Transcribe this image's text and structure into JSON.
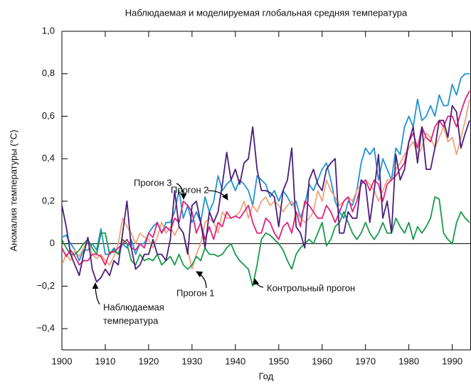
{
  "chart_data": {
    "type": "line",
    "title": "Наблюдаемая и моделируемая глобальная средняя температура",
    "xlabel": "Год",
    "ylabel": "Аномалия температуры (°C)",
    "x": [
      1900,
      1901,
      1902,
      1903,
      1904,
      1905,
      1906,
      1907,
      1908,
      1909,
      1910,
      1911,
      1912,
      1913,
      1914,
      1915,
      1916,
      1917,
      1918,
      1919,
      1920,
      1921,
      1922,
      1923,
      1924,
      1925,
      1926,
      1927,
      1928,
      1929,
      1930,
      1931,
      1932,
      1933,
      1934,
      1935,
      1936,
      1937,
      1938,
      1939,
      1940,
      1941,
      1942,
      1943,
      1944,
      1945,
      1946,
      1947,
      1948,
      1949,
      1950,
      1951,
      1952,
      1953,
      1954,
      1955,
      1956,
      1957,
      1958,
      1959,
      1960,
      1961,
      1962,
      1963,
      1964,
      1965,
      1966,
      1967,
      1968,
      1969,
      1970,
      1971,
      1972,
      1973,
      1974,
      1975,
      1976,
      1977,
      1978,
      1979,
      1980,
      1981,
      1982,
      1983,
      1984,
      1985,
      1986,
      1987,
      1988,
      1989,
      1990,
      1991,
      1992,
      1993,
      1994
    ],
    "series": [
      {
        "color": "#1f93d2",
        "values": [
          0.03,
          0.04,
          0,
          -0.03,
          -0.08,
          -0.03,
          -0.03,
          0,
          -0.03,
          0.07,
          -0.05,
          -0.05,
          -0.02,
          -0.05,
          0,
          -0.02,
          0.02,
          -0.05,
          0,
          0,
          0.05,
          0.08,
          0.1,
          0.05,
          0.1,
          0.1,
          0.15,
          0.25,
          0.12,
          0.18,
          0.1,
          0.15,
          0.1,
          0.22,
          0.15,
          0.2,
          0.32,
          0.25,
          0.28,
          0.3,
          0.25,
          0.3,
          0.28,
          0.25,
          0.18,
          0.32,
          0.3,
          0.28,
          0.22,
          0.25,
          0.2,
          0.25,
          0.22,
          0.18,
          0.2,
          0.12,
          0.18,
          0.28,
          0.25,
          0.3,
          0.35,
          0.38,
          0.3,
          0.2,
          0.15,
          0.12,
          0.2,
          0.18,
          0.25,
          0.38,
          0.45,
          0.42,
          0.45,
          0.3,
          0.4,
          0.35,
          0.3,
          0.45,
          0.42,
          0.55,
          0.6,
          0.55,
          0.68,
          0.58,
          0.6,
          0.65,
          0.6,
          0.7,
          0.65,
          0.65,
          0.75,
          0.7,
          0.78,
          0.8,
          0.8
        ]
      },
      {
        "color": "#f0a57a",
        "values": [
          -0.1,
          -0.05,
          -0.08,
          -0.03,
          -0.06,
          -0.02,
          0.02,
          -0.05,
          -0.07,
          -0.05,
          -0.08,
          -0.1,
          -0.06,
          0,
          0.12,
          0.08,
          0.05,
          0,
          0.05,
          0.03,
          0.02,
          -0.02,
          0.03,
          0.1,
          0.05,
          0.08,
          0.04,
          0.08,
          0.05,
          -0.03,
          -0.12,
          -0.05,
          0,
          0.1,
          0.12,
          0.1,
          0.05,
          0.15,
          0.12,
          0.12,
          0.13,
          0.15,
          0.2,
          0.12,
          0.18,
          0.15,
          0.2,
          0.22,
          0.18,
          0.2,
          0.18,
          0.15,
          0.18,
          0.2,
          0.15,
          0.12,
          0.1,
          0.12,
          0.15,
          0.25,
          0.2,
          0.3,
          0.25,
          0.22,
          0.18,
          0.2,
          0.22,
          0.2,
          0.25,
          0.28,
          0.3,
          0.28,
          0.25,
          0.2,
          0.25,
          0.3,
          0.3,
          0.35,
          0.38,
          0.42,
          0.45,
          0.48,
          0.42,
          0.45,
          0.52,
          0.5,
          0.45,
          0.5,
          0.55,
          0.48,
          0.5,
          0.42,
          0.5,
          0.58,
          0.68
        ]
      },
      {
        "color": "#1a9a4a",
        "values": [
          0.02,
          -0.02,
          -0.05,
          -0.05,
          -0.03,
          0,
          0.02,
          -0.02,
          -0.05,
          0.05,
          0.05,
          -0.05,
          -0.03,
          -0.05,
          0.02,
          0,
          -0.08,
          -0.1,
          -0.05,
          -0.08,
          -0.07,
          -0.08,
          -0.05,
          -0.1,
          -0.08,
          -0.06,
          -0.1,
          -0.05,
          -0.1,
          -0.12,
          -0.1,
          -0.06,
          -0.08,
          -0.02,
          -0.05,
          -0.05,
          -0.06,
          -0.05,
          -0.02,
          0,
          -0.05,
          -0.08,
          -0.1,
          -0.12,
          -0.2,
          -0.1,
          0.02,
          0.05,
          0.04,
          0.02,
          0,
          -0.03,
          -0.08,
          -0.12,
          -0.05,
          -0.02,
          0,
          0.02,
          0,
          0.05,
          0.1,
          -0.01,
          0.02,
          0.08,
          0.1,
          0.15,
          0.1,
          0.05,
          0.02,
          0.05,
          0.1,
          0.05,
          0.02,
          0.05,
          0.1,
          0.05,
          0.05,
          0.12,
          0.08,
          0.05,
          0.1,
          0.02,
          0.08,
          0.05,
          0.08,
          0.12,
          0.22,
          0.21,
          0.05,
          0.02,
          0,
          0.1,
          0.15,
          0.12,
          0.1
        ]
      },
      {
        "color": "#e0237c",
        "values": [
          -0.02,
          -0.06,
          -0.03,
          -0.06,
          -0.1,
          -0.08,
          -0.08,
          -0.05,
          -0.05,
          -0.06,
          -0.1,
          -0.04,
          -0.04,
          -0.02,
          0,
          0.02,
          -0.02,
          -0.03,
          0,
          -0.02,
          0.05,
          0.03,
          0.1,
          0.05,
          0.08,
          0.06,
          0.12,
          0.1,
          0.2,
          0.18,
          0.15,
          0.05,
          0.1,
          0.02,
          0.08,
          0.02,
          0.1,
          0.08,
          0.15,
          0.12,
          0.13,
          0.12,
          0.15,
          0.18,
          0.1,
          0.05,
          0.05,
          0.12,
          0.1,
          0.05,
          0.02,
          0.08,
          0.1,
          0.05,
          0.15,
          0.08,
          0.2,
          0.18,
          0.15,
          0.12,
          0.12,
          0.18,
          0.15,
          0.1,
          0.15,
          0.2,
          0.22,
          0.15,
          0.2,
          0.28,
          0.3,
          0.25,
          0.3,
          0.28,
          0.2,
          0.28,
          0.3,
          0.32,
          0.35,
          0.38,
          0.48,
          0.52,
          0.45,
          0.55,
          0.5,
          0.48,
          0.55,
          0.58,
          0.55,
          0.6,
          0.6,
          0.55,
          0.62,
          0.68,
          0.72
        ]
      },
      {
        "color": "#4a1f7c",
        "values": [
          0.18,
          0.08,
          -0.05,
          -0.1,
          -0.15,
          -0.05,
          0.03,
          -0.12,
          -0.18,
          -0.16,
          -0.12,
          -0.15,
          -0.08,
          -0.1,
          0.05,
          0.2,
          -0.02,
          -0.12,
          -0.1,
          -0.05,
          -0.05,
          0.02,
          -0.05,
          -0.05,
          -0.08,
          0.02,
          0.25,
          0.08,
          0.05,
          -0.05,
          0.18,
          0.2,
          0.1,
          -0.02,
          0.15,
          0.1,
          0.15,
          0.28,
          0.43,
          0.3,
          0.35,
          0.28,
          0.38,
          0.4,
          0.55,
          0.35,
          0.25,
          0.25,
          0.24,
          0.22,
          0.08,
          0.25,
          0.3,
          0.45,
          0.08,
          0.05,
          -0.02,
          0.3,
          0.35,
          0.28,
          0.25,
          0.35,
          0.38,
          0.4,
          0.05,
          0.05,
          0.15,
          0.12,
          0.12,
          0.3,
          0.28,
          0.1,
          0.25,
          0.42,
          0.12,
          0.2,
          0.05,
          0.42,
          0.3,
          0.35,
          0.48,
          0.55,
          0.38,
          0.55,
          0.35,
          0.35,
          0.45,
          0.58,
          0.58,
          0.5,
          0.65,
          0.62,
          0.45,
          0.52,
          0.58
        ]
      }
    ],
    "annotations": [
      {
        "text": "Прогон 2"
      },
      {
        "text": "Прогон 3"
      },
      {
        "text": "Прогон 1"
      },
      {
        "lines": [
          "Наблюдаемая",
          "температура"
        ]
      },
      {
        "text": "Контрольный прогон"
      }
    ],
    "xlim": [
      1900,
      1994
    ],
    "ylim": [
      -0.5,
      1.0
    ],
    "xticks": [
      1900,
      1910,
      1920,
      1930,
      1940,
      1950,
      1960,
      1970,
      1980,
      1990
    ],
    "yticks": [
      {
        "value": 1.0,
        "label": "1,0"
      },
      {
        "value": 0.8,
        "label": "0,8"
      },
      {
        "value": 0.6,
        "label": "0,6"
      },
      {
        "value": 0.4,
        "label": "0,4"
      },
      {
        "value": 0.2,
        "label": "0,2"
      },
      0,
      {
        "value": -0.2,
        "label": "−0,2"
      },
      {
        "value": -0.4,
        "label": "−0,4"
      }
    ]
  }
}
